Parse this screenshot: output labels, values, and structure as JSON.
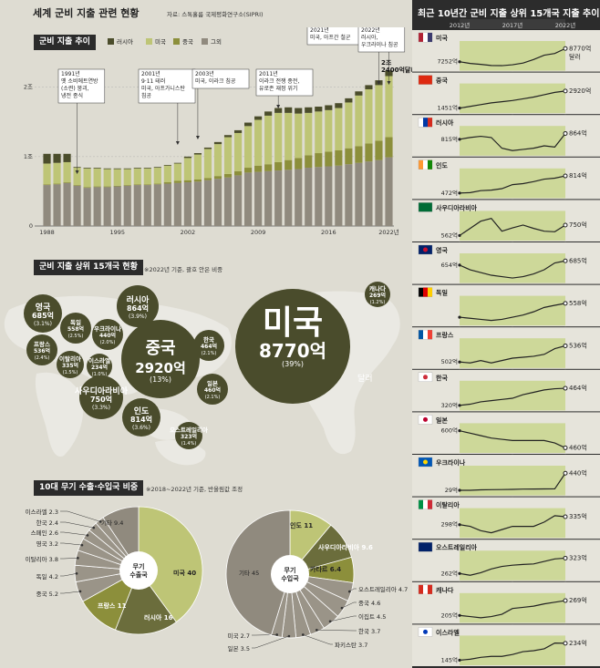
{
  "page": {
    "title": "세계 군비 지출 관련 현황",
    "source": "자료: 스톡홀름 국제평화연구소(SIPRI)"
  },
  "colors": {
    "russia": "#4b4d2b",
    "usa": "#bec576",
    "china": "#8c8f3b",
    "other": "#908a7e",
    "bubble": "#4a4c2c",
    "map": "#ebeae4",
    "bg": "#dedcd2",
    "linefill": "#cdd899"
  },
  "trend": {
    "header": "군비 지출 추이",
    "legend": [
      "러시아",
      "미국",
      "중국",
      "그외"
    ],
    "yticks": [
      "2조",
      "1조",
      "0"
    ],
    "xticks": [
      "1988",
      "1995",
      "2002",
      "2009",
      "2016",
      "2022년"
    ],
    "annotations": [
      {
        "year": 1991,
        "text": "1991년\n옛 소비에트연방\n(소련) 붕괴,\n냉전 종식"
      },
      {
        "year": 2001,
        "text": "2001년\n9·11 테러\n미국, 아프가니스탄\n침공"
      },
      {
        "year": 2003,
        "text": "2003년\n미국, 이라크 침공"
      },
      {
        "year": 2011,
        "text": "2011년\n이라크 전쟁 종전,\n유로존 재정 위기"
      },
      {
        "year": 2021,
        "text": "2021년\n미국, 아프간 철군"
      },
      {
        "year": 2022,
        "text": "2022년\n러시아,\n우크라이나 침공"
      }
    ],
    "total_label": "2조\n2400억달러"
  },
  "chart_data": [
    {
      "type": "bar",
      "title": "군비 지출 추이",
      "unit": "조 달러",
      "ylim": [
        0,
        2.6
      ],
      "x": [
        1988,
        1989,
        1990,
        1991,
        1992,
        1993,
        1994,
        1995,
        1996,
        1997,
        1998,
        1999,
        2000,
        2001,
        2002,
        2003,
        2004,
        2005,
        2006,
        2007,
        2008,
        2009,
        2010,
        2011,
        2012,
        2013,
        2014,
        2015,
        2016,
        2017,
        2018,
        2019,
        2020,
        2021,
        2022
      ],
      "series": [
        {
          "name": "그외",
          "values": [
            0.59,
            0.6,
            0.62,
            0.58,
            0.55,
            0.56,
            0.56,
            0.57,
            0.58,
            0.59,
            0.59,
            0.6,
            0.61,
            0.62,
            0.63,
            0.64,
            0.66,
            0.68,
            0.7,
            0.73,
            0.77,
            0.78,
            0.79,
            0.8,
            0.81,
            0.82,
            0.84,
            0.85,
            0.86,
            0.87,
            0.89,
            0.91,
            0.93,
            0.95,
            0.99
          ]
        },
        {
          "name": "중국",
          "values": [
            0.01,
            0.01,
            0.01,
            0.01,
            0.01,
            0.01,
            0.01,
            0.01,
            0.01,
            0.01,
            0.01,
            0.01,
            0.02,
            0.03,
            0.03,
            0.03,
            0.03,
            0.04,
            0.05,
            0.06,
            0.07,
            0.09,
            0.1,
            0.12,
            0.14,
            0.16,
            0.18,
            0.2,
            0.21,
            0.22,
            0.23,
            0.24,
            0.26,
            0.28,
            0.29
          ]
        },
        {
          "name": "미국",
          "values": [
            0.3,
            0.3,
            0.29,
            0.25,
            0.27,
            0.26,
            0.25,
            0.24,
            0.23,
            0.23,
            0.23,
            0.23,
            0.24,
            0.25,
            0.32,
            0.36,
            0.42,
            0.46,
            0.53,
            0.55,
            0.6,
            0.66,
            0.7,
            0.71,
            0.68,
            0.64,
            0.61,
            0.6,
            0.6,
            0.61,
            0.66,
            0.73,
            0.78,
            0.8,
            0.88
          ]
        },
        {
          "name": "러시아",
          "values": [
            0.14,
            0.13,
            0.12,
            0.01,
            0.01,
            0.01,
            0.01,
            0.01,
            0.01,
            0.01,
            0.01,
            0.01,
            0.01,
            0.01,
            0.02,
            0.02,
            0.02,
            0.03,
            0.03,
            0.04,
            0.05,
            0.05,
            0.06,
            0.07,
            0.08,
            0.08,
            0.08,
            0.07,
            0.07,
            0.07,
            0.06,
            0.06,
            0.06,
            0.07,
            0.08
          ]
        }
      ]
    },
    {
      "type": "bubble",
      "title": "군비 지출 상위 15개국 현황",
      "note": "※2022년 기준, 괄호 안은 비중",
      "unit_suffix": "달러",
      "items": [
        {
          "name": "미국",
          "value": "8770억",
          "share": "(39%)",
          "v": 8770
        },
        {
          "name": "중국",
          "value": "2920억",
          "share": "(13%)",
          "v": 2920
        },
        {
          "name": "러시아",
          "value": "864억",
          "share": "(3.9%)",
          "v": 864
        },
        {
          "name": "인도",
          "value": "814억",
          "share": "(3.6%)",
          "v": 814
        },
        {
          "name": "사우디아라비아",
          "value": "750억",
          "share": "(3.3%)",
          "v": 750
        },
        {
          "name": "영국",
          "value": "685억",
          "share": "(3.1%)",
          "v": 685
        },
        {
          "name": "독일",
          "value": "558억",
          "share": "(2.5%)",
          "v": 558
        },
        {
          "name": "프랑스",
          "value": "536억",
          "share": "(2.4%)",
          "v": 536
        },
        {
          "name": "한국",
          "value": "464억",
          "share": "(2.1%)",
          "v": 464
        },
        {
          "name": "일본",
          "value": "460억",
          "share": "(2.1%)",
          "v": 460
        },
        {
          "name": "우크라이나",
          "value": "440억",
          "share": "(2.0%)",
          "v": 440
        },
        {
          "name": "이탈리아",
          "value": "335억",
          "share": "(1.5%)",
          "v": 335
        },
        {
          "name": "오스트레일리아",
          "value": "323억",
          "share": "(1.4%)",
          "v": 323
        },
        {
          "name": "캐나다",
          "value": "269억",
          "share": "(1.2%)",
          "v": 269
        },
        {
          "name": "이스라엘",
          "value": "234억",
          "share": "(1.0%)",
          "v": 234
        }
      ]
    },
    {
      "type": "pie",
      "title": "무기 수출국",
      "label": "무기\n수출국",
      "slices": [
        {
          "name": "미국",
          "value": 40
        },
        {
          "name": "러시아",
          "value": 16
        },
        {
          "name": "프랑스",
          "value": 11
        },
        {
          "name": "중국",
          "value": 5.2
        },
        {
          "name": "독일",
          "value": 4.2
        },
        {
          "name": "이탈리아",
          "value": 3.8
        },
        {
          "name": "영국",
          "value": 3.2
        },
        {
          "name": "스페인",
          "value": 2.6
        },
        {
          "name": "한국",
          "value": 2.4
        },
        {
          "name": "이스라엘",
          "value": 2.3
        },
        {
          "name": "기타",
          "value": 9.4
        }
      ]
    },
    {
      "type": "pie",
      "title": "무기 수입국",
      "label": "무기\n수입국",
      "slices": [
        {
          "name": "인도",
          "value": 11
        },
        {
          "name": "사우디아라비아",
          "value": 9.6
        },
        {
          "name": "카타르",
          "value": 6.4
        },
        {
          "name": "오스트레일리아",
          "value": 4.7
        },
        {
          "name": "중국",
          "value": 4.6
        },
        {
          "name": "이집트",
          "value": 4.5
        },
        {
          "name": "한국",
          "value": 3.7
        },
        {
          "name": "파키스탄",
          "value": 3.7
        },
        {
          "name": "일본",
          "value": 3.5
        },
        {
          "name": "미국",
          "value": 2.7
        },
        {
          "name": "기타",
          "value": 45
        }
      ]
    },
    {
      "type": "line",
      "title": "최근 10년간 군비 지출 상위 15개국 지출 추이",
      "x": [
        2012,
        2013,
        2014,
        2015,
        2016,
        2017,
        2018,
        2019,
        2020,
        2021,
        2022
      ],
      "xticks": [
        "2012년",
        "2017년",
        "2022년"
      ],
      "unit_suffix": "달러",
      "series": [
        {
          "name": "미국",
          "start": "7252억",
          "end": "8770억",
          "values": [
            7252,
            7050,
            6950,
            6820,
            6800,
            6900,
            7100,
            7500,
            8000,
            8200,
            8770
          ]
        },
        {
          "name": "중국",
          "start": "1451억",
          "end": "2920억",
          "values": [
            1451,
            1600,
            1750,
            1900,
            2000,
            2100,
            2250,
            2400,
            2600,
            2800,
            2920
          ]
        },
        {
          "name": "러시아",
          "start": "815억",
          "end": "864억",
          "values": [
            815,
            830,
            840,
            830,
            740,
            720,
            730,
            740,
            760,
            750,
            864
          ]
        },
        {
          "name": "인도",
          "start": "472억",
          "end": "814억",
          "values": [
            472,
            480,
            520,
            530,
            560,
            640,
            660,
            700,
            750,
            770,
            814
          ]
        },
        {
          "name": "사우디아라비아",
          "start": "562억",
          "end": "750억",
          "values": [
            562,
            690,
            820,
            870,
            640,
            700,
            750,
            690,
            640,
            630,
            750
          ]
        },
        {
          "name": "영국",
          "start": "654억",
          "end": "685억",
          "values": [
            654,
            620,
            600,
            580,
            570,
            560,
            570,
            590,
            620,
            670,
            685
          ]
        },
        {
          "name": "독일",
          "start": "",
          "end": "558억",
          "values": [
            430,
            420,
            410,
            400,
            410,
            430,
            450,
            480,
            520,
            540,
            558
          ]
        },
        {
          "name": "프랑스",
          "start": "502억",
          "end": "536억",
          "values": [
            502,
            500,
            505,
            500,
            505,
            510,
            512,
            514,
            518,
            530,
            536
          ]
        },
        {
          "name": "한국",
          "start": "320억",
          "end": "464억",
          "values": [
            320,
            330,
            350,
            360,
            370,
            380,
            410,
            430,
            450,
            460,
            464
          ]
        },
        {
          "name": "일본",
          "start": "600억",
          "end": "460억",
          "values": [
            600,
            580,
            560,
            540,
            530,
            520,
            520,
            520,
            520,
            500,
            460
          ]
        },
        {
          "name": "우크라이나",
          "start": "29억",
          "end": "440억",
          "values": [
            29,
            30,
            40,
            45,
            48,
            52,
            58,
            60,
            62,
            64,
            440
          ]
        },
        {
          "name": "이탈리아",
          "start": "298억",
          "end": "335억",
          "values": [
            298,
            290,
            270,
            260,
            275,
            290,
            290,
            290,
            310,
            340,
            335
          ]
        },
        {
          "name": "오스트레일리아",
          "start": "262억",
          "end": "323억",
          "values": [
            262,
            255,
            265,
            280,
            290,
            295,
            298,
            300,
            310,
            320,
            323
          ]
        },
        {
          "name": "캐나다",
          "start": "205억",
          "end": "269억",
          "values": [
            205,
            200,
            195,
            200,
            210,
            235,
            240,
            245,
            255,
            262,
            269
          ]
        },
        {
          "name": "이스라엘",
          "start": "145억",
          "end": "234억",
          "values": [
            145,
            150,
            160,
            165,
            165,
            175,
            190,
            195,
            205,
            235,
            234
          ]
        }
      ]
    }
  ],
  "bubbles_section": {
    "header": "군비 지출 상위 15개국 현황"
  },
  "arms": {
    "header": "10대 무기 수출·수입국 비중",
    "note": "※2018~2022년 기준, 반올림값 조정"
  },
  "right": {
    "title": "최근 10년간 군비 지출 상위 15개국 지출 추이"
  }
}
